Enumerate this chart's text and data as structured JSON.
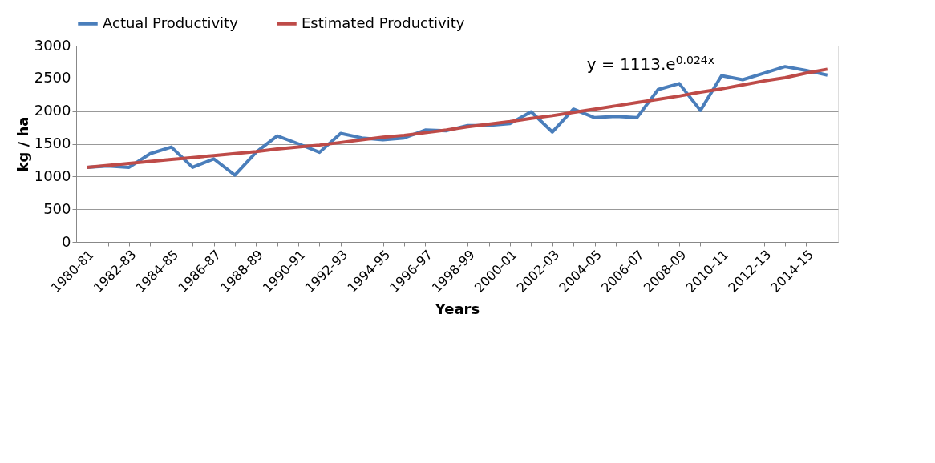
{
  "chart_data": {
    "type": "line",
    "xlabel": "Years",
    "ylabel": "kg / ha",
    "categories": [
      "1980-81",
      null,
      "1982-83",
      null,
      "1984-85",
      null,
      "1986-87",
      null,
      "1988-89",
      null,
      "1990-91",
      null,
      "1992-93",
      null,
      "1994-95",
      null,
      "1996-97",
      null,
      "1998-99",
      null,
      "2000-01",
      null,
      "2002-03",
      null,
      "2004-05",
      null,
      "2006-07",
      null,
      "2008-09",
      null,
      "2010-11",
      null,
      "2012-13",
      null,
      "2014-15",
      null
    ],
    "series": [
      {
        "name": "Actual Productivity",
        "color": "#4a7ebb",
        "values": [
          1140,
          1160,
          1140,
          1350,
          1450,
          1140,
          1270,
          1020,
          1370,
          1620,
          1500,
          1370,
          1660,
          1590,
          1560,
          1590,
          1710,
          1700,
          1780,
          1780,
          1810,
          1990,
          1680,
          2030,
          1900,
          1920,
          1900,
          2330,
          2420,
          2010,
          2540,
          2480,
          2580,
          2680,
          2620,
          2550
        ]
      },
      {
        "name": "Estimated Productivity",
        "color": "#be4b48",
        "values": [
          1140,
          1170,
          1200,
          1230,
          1260,
          1290,
          1320,
          1350,
          1380,
          1420,
          1450,
          1480,
          1520,
          1560,
          1600,
          1630,
          1670,
          1710,
          1760,
          1800,
          1840,
          1890,
          1930,
          1980,
          2030,
          2080,
          2130,
          2180,
          2230,
          2290,
          2340,
          2400,
          2460,
          2510,
          2580,
          2640
        ]
      }
    ],
    "ylim": [
      0,
      3000
    ],
    "yticks": [
      0,
      500,
      1000,
      1500,
      2000,
      2500,
      3000
    ],
    "grid": "y",
    "legend": "top",
    "marker": "none",
    "line_style": "solid",
    "annotations": [
      "y = 1113.e$^{0.024x}$"
    ]
  }
}
